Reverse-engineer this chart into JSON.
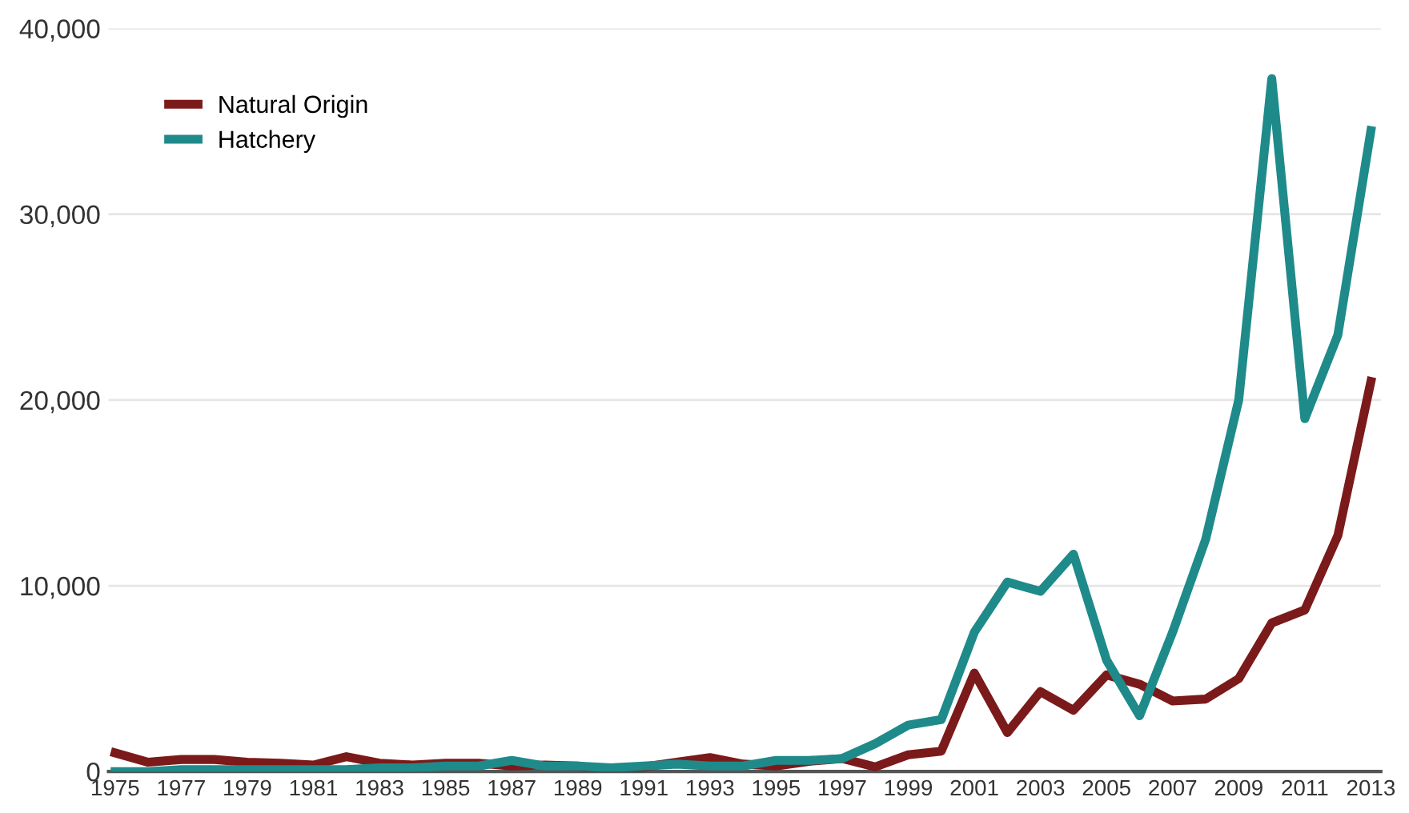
{
  "chart_data": {
    "type": "line",
    "x": [
      1975,
      1976,
      1977,
      1978,
      1979,
      1980,
      1981,
      1982,
      1983,
      1984,
      1985,
      1986,
      1987,
      1988,
      1989,
      1990,
      1991,
      1992,
      1993,
      1994,
      1995,
      1996,
      1997,
      1998,
      1999,
      2000,
      2001,
      2002,
      2003,
      2004,
      2005,
      2006,
      2007,
      2008,
      2009,
      2010,
      2011,
      2012,
      2013
    ],
    "series": [
      {
        "name": "Natural Origin",
        "color": "#7b1a1a",
        "values": [
          1000,
          500,
          650,
          650,
          500,
          450,
          350,
          800,
          450,
          350,
          450,
          450,
          300,
          350,
          300,
          50,
          250,
          500,
          750,
          400,
          300,
          550,
          700,
          250,
          900,
          1100,
          5300,
          2100,
          4300,
          3300,
          5200,
          4700,
          3800,
          3900,
          5000,
          8000,
          8700,
          12700,
          21000
        ]
      },
      {
        "name": "Hatchery",
        "color": "#1f8a8a",
        "values": [
          0,
          0,
          100,
          100,
          100,
          100,
          100,
          100,
          200,
          200,
          300,
          300,
          600,
          300,
          300,
          200,
          300,
          400,
          300,
          300,
          600,
          600,
          700,
          1500,
          2500,
          2800,
          7500,
          10200,
          9700,
          11700,
          6000,
          3000,
          7500,
          12500,
          20000,
          37300,
          19000,
          23500,
          34500
        ]
      }
    ],
    "xlim": [
      1974.8,
      2013.3
    ],
    "xticks": [
      1975,
      1977,
      1979,
      1981,
      1983,
      1985,
      1987,
      1989,
      1991,
      1993,
      1995,
      1997,
      1999,
      2001,
      2003,
      2005,
      2007,
      2009,
      2011,
      2013
    ],
    "ylim": [
      0,
      40000
    ],
    "yticks": [
      {
        "value": 0,
        "label": "0"
      },
      {
        "value": 10000,
        "label": "10,000"
      },
      {
        "value": 20000,
        "label": "20,000"
      },
      {
        "value": 30000,
        "label": "30,000"
      },
      {
        "value": 40000,
        "label": "40,000"
      }
    ],
    "grid": "y",
    "legend": "top left",
    "line_style": "solid",
    "marker": "none"
  }
}
